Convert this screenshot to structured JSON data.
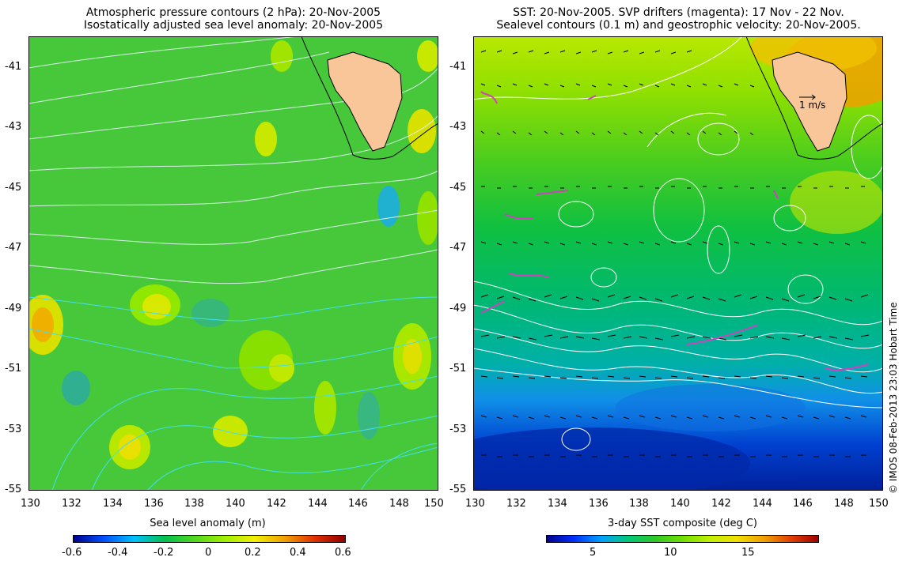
{
  "left_panel": {
    "title_line1": "Atmospheric pressure contours (2 hPa): 20-Nov-2005",
    "title_line2": "Isostatically adjusted sea level anomaly: 20-Nov-2005",
    "x_ticks": [
      "130",
      "132",
      "134",
      "136",
      "138",
      "140",
      "142",
      "144",
      "146",
      "148",
      "150"
    ],
    "y_ticks": [
      "-41",
      "-43",
      "-45",
      "-47",
      "-49",
      "-51",
      "-53",
      "-55"
    ],
    "colorbar_label": "Sea level anomaly (m)",
    "colorbar_ticks": [
      "-0.6",
      "-0.4",
      "-0.2",
      "0",
      "0.2",
      "0.4",
      "0.6"
    ],
    "colorbar_range": [
      -0.6,
      0.6
    ]
  },
  "right_panel": {
    "title_line1": "SST: 20-Nov-2005. SVP drifters (magenta): 17 Nov - 22 Nov.",
    "title_line2": "Sealevel contours (0.1 m) and geostrophic velocity: 20-Nov-2005.",
    "x_ticks": [
      "130",
      "132",
      "134",
      "136",
      "138",
      "140",
      "142",
      "144",
      "146",
      "148",
      "150"
    ],
    "y_ticks": [
      "-41",
      "-43",
      "-45",
      "-47",
      "-49",
      "-51",
      "-53",
      "-55"
    ],
    "scale_arrow_label": "1 m/s",
    "colorbar_label": "3-day SST composite (deg C)",
    "colorbar_ticks": [
      "5",
      "10",
      "15"
    ],
    "colorbar_range": [
      2,
      20
    ]
  },
  "credit": "© IMOS 08-Feb-2013 23:03 Hobart Time",
  "map_extent": {
    "lon": [
      130,
      150
    ],
    "lat": [
      -55,
      -40
    ]
  },
  "colors": {
    "land": "#f9c69a",
    "drifter": "#d040c0",
    "ssl_colormap": [
      "#00008f",
      "#0050ff",
      "#00c0ff",
      "#00c050",
      "#4fd81f",
      "#a0f000",
      "#f0f000",
      "#f0a000",
      "#e03000",
      "#8f0000"
    ],
    "sst_colormap": [
      "#00008f",
      "#0030ff",
      "#00a0ff",
      "#00c878",
      "#30c828",
      "#70e000",
      "#c0f000",
      "#f0e000",
      "#f0a000",
      "#e04000",
      "#a00000"
    ]
  }
}
